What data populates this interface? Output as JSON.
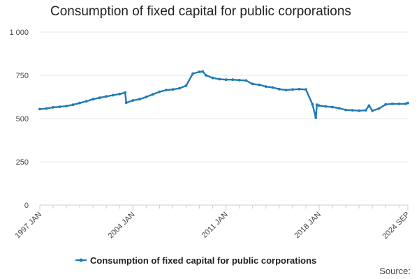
{
  "title": "Consumption of fixed capital for public corporations",
  "source_label": "Source:",
  "colors": {
    "series": "#1f7ab5",
    "grid": "#e6e6e6",
    "axis": "#c8d0d8"
  },
  "chart_data": {
    "type": "line",
    "title": "Consumption of fixed capital for public corporations",
    "xlabel": "",
    "ylabel": "",
    "ylim": [
      0,
      1000
    ],
    "yticks": [
      0,
      250,
      500,
      750,
      1000
    ],
    "ytick_labels": [
      "0",
      "250",
      "500",
      "750",
      "1 000"
    ],
    "x_range": [
      "1997 JAN",
      "2024 SEP"
    ],
    "xtick_labels": [
      "1997 JAN",
      "2004 JAN",
      "2011 JAN",
      "2018 JAN",
      "2024 SEP"
    ],
    "grid": true,
    "legend": "bottom-center",
    "series": [
      {
        "name": "Consumption of fixed capital for public corporations",
        "x": [
          "1997 JAN",
          "1997 JUL",
          "1998 JAN",
          "1998 JUL",
          "1999 JAN",
          "1999 JUL",
          "2000 JAN",
          "2000 JUL",
          "2001 JAN",
          "2001 JUL",
          "2002 JAN",
          "2002 JUL",
          "2003 JAN",
          "2003 JUN",
          "2003 JUL",
          "2004 JAN",
          "2004 JUL",
          "2005 JAN",
          "2005 JUL",
          "2006 JAN",
          "2006 JUL",
          "2007 JAN",
          "2007 JUL",
          "2008 JAN",
          "2008 JUL",
          "2009 JAN",
          "2009 APR",
          "2009 JUL",
          "2010 JAN",
          "2010 JUL",
          "2011 JAN",
          "2011 JUL",
          "2012 JAN",
          "2012 JUL",
          "2013 JAN",
          "2013 JUL",
          "2014 JAN",
          "2014 JUL",
          "2015 JAN",
          "2015 JUL",
          "2016 JAN",
          "2016 JUL",
          "2017 JAN",
          "2017 JUL",
          "2017 OCT",
          "2017 NOV",
          "2018 JAN",
          "2018 JUL",
          "2019 JAN",
          "2019 JUL",
          "2020 JAN",
          "2020 JUL",
          "2021 JAN",
          "2021 JUL",
          "2021 OCT",
          "2022 JAN",
          "2022 JUL",
          "2023 JAN",
          "2023 JUL",
          "2024 JAN",
          "2024 JUL",
          "2024 SEP"
        ],
        "values": [
          555,
          558,
          565,
          568,
          572,
          580,
          590,
          600,
          612,
          620,
          628,
          635,
          642,
          650,
          592,
          605,
          612,
          625,
          640,
          655,
          665,
          668,
          675,
          690,
          760,
          770,
          772,
          750,
          735,
          728,
          725,
          725,
          722,
          720,
          700,
          695,
          685,
          680,
          670,
          665,
          668,
          670,
          668,
          582,
          505,
          580,
          575,
          570,
          566,
          560,
          550,
          548,
          545,
          548,
          575,
          545,
          558,
          582,
          585,
          585,
          585,
          590
        ]
      }
    ]
  }
}
